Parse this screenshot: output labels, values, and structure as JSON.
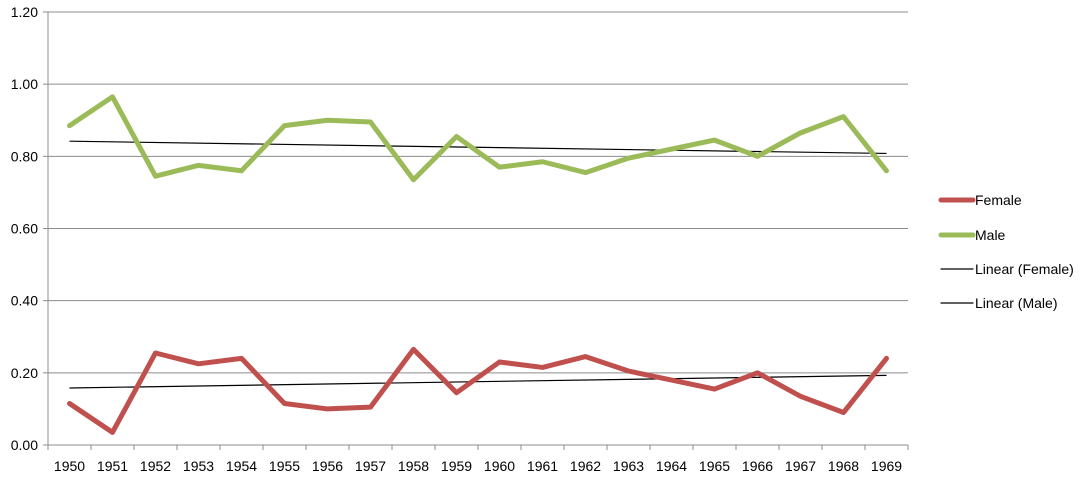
{
  "chart_data": {
    "type": "line",
    "title": "",
    "xlabel": "",
    "ylabel": "",
    "ylim": [
      0,
      1.2
    ],
    "y_ticks": [
      "0.00",
      "0.20",
      "0.40",
      "0.60",
      "0.80",
      "1.00",
      "1.20"
    ],
    "y_tick_values": [
      0,
      0.2,
      0.4,
      0.6,
      0.8,
      1.0,
      1.2
    ],
    "grid": "horizontal",
    "legend_position": "right",
    "categories": [
      "1950",
      "1951",
      "1952",
      "1953",
      "1954",
      "1955",
      "1956",
      "1957",
      "1958",
      "1959",
      "1960",
      "1961",
      "1962",
      "1963",
      "1964",
      "1965",
      "1966",
      "1967",
      "1968",
      "1969"
    ],
    "series": [
      {
        "name": "Female",
        "color": "#c0504d",
        "values": [
          0.115,
          0.035,
          0.255,
          0.225,
          0.24,
          0.115,
          0.1,
          0.105,
          0.265,
          0.145,
          0.23,
          0.215,
          0.245,
          0.205,
          0.18,
          0.155,
          0.2,
          0.135,
          0.09,
          0.24
        ]
      },
      {
        "name": "Male",
        "color": "#9bbb59",
        "values": [
          0.885,
          0.965,
          0.745,
          0.775,
          0.76,
          0.885,
          0.9,
          0.895,
          0.735,
          0.855,
          0.77,
          0.785,
          0.755,
          0.795,
          0.82,
          0.845,
          0.8,
          0.865,
          0.91,
          0.76
        ]
      }
    ],
    "trendlines": [
      {
        "name": "Linear (Female)",
        "color": "#000000",
        "start": 0.158,
        "end": 0.193
      },
      {
        "name": "Linear (Male)",
        "color": "#000000",
        "start": 0.842,
        "end": 0.808
      }
    ]
  }
}
